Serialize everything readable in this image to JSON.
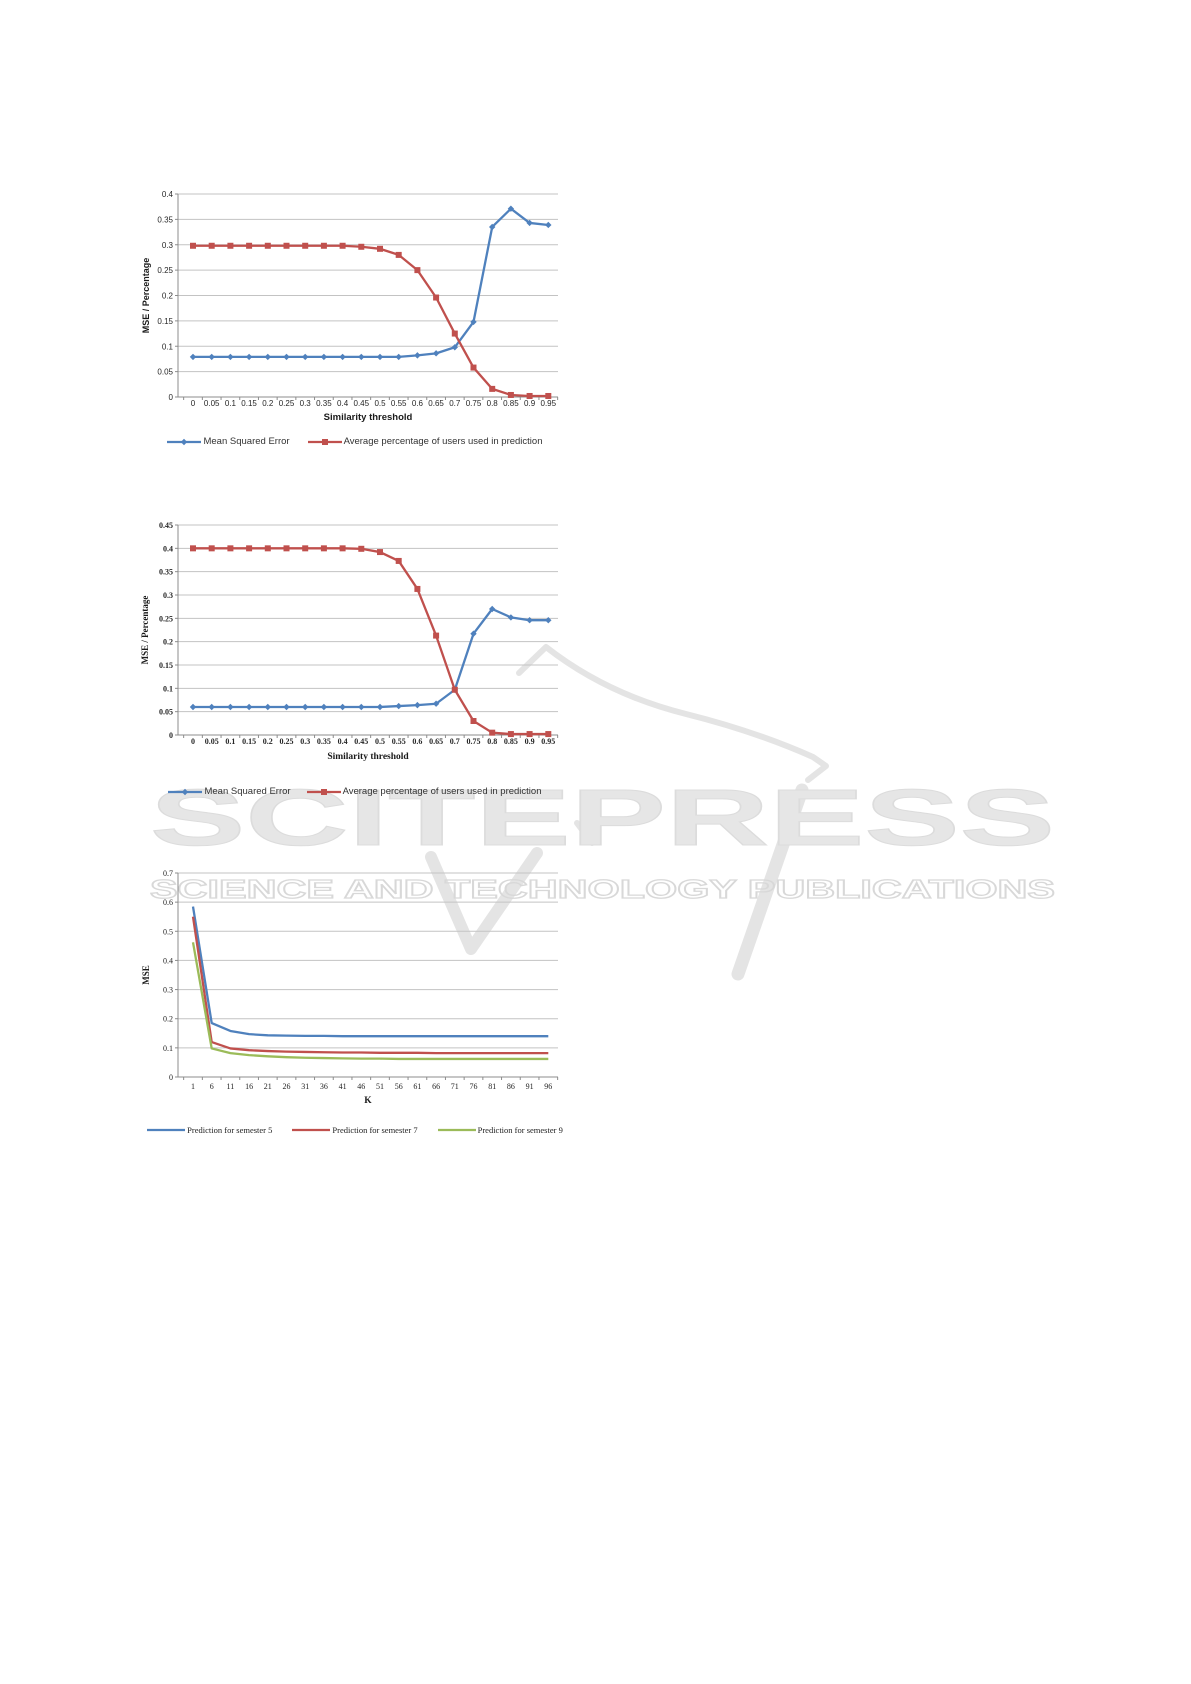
{
  "watermark": {
    "title": "SCITEPRESS",
    "subtitle": "SCIENCE AND TECHNOLOGY PUBLICATIONS",
    "fill_color": "#e6e6e6",
    "outline_color": "#dadada"
  },
  "chart_data": [
    {
      "type": "line",
      "title": "",
      "xlabel": "Similarity threshold",
      "ylabel": "MSE / Percentage",
      "x_tick_labels": [
        "0",
        "0.05",
        "0.1",
        "0.15",
        "0.2",
        "0.25",
        "0.3",
        "0.35",
        "0.4",
        "0.45",
        "0.5",
        "0.55",
        "0.6",
        "0.65",
        "0.7",
        "0.75",
        "0.8",
        "0.85",
        "0.9",
        "0.95"
      ],
      "y_ticks": [
        0,
        0.05,
        0.1,
        0.15,
        0.2,
        0.25,
        0.3,
        0.35,
        0.4
      ],
      "y_tick_labels": [
        "0",
        "0.05",
        "0.1",
        "0.15",
        "0.2",
        "0.25",
        "0.3",
        "0.35",
        "0.4"
      ],
      "ylim": [
        0,
        0.4
      ],
      "grid": true,
      "legend_position": "bottom",
      "series": [
        {
          "name": "Mean Squared Error",
          "color": "#4f81bd",
          "marker": "diamond",
          "values": [
            0.079,
            0.079,
            0.079,
            0.079,
            0.079,
            0.079,
            0.079,
            0.079,
            0.079,
            0.079,
            0.079,
            0.079,
            0.082,
            0.086,
            0.098,
            0.148,
            0.335,
            0.371,
            0.343,
            0.339
          ]
        },
        {
          "name": "Average percentage of users used in prediction",
          "color": "#c0504d",
          "marker": "square",
          "values": [
            0.298,
            0.298,
            0.298,
            0.298,
            0.298,
            0.298,
            0.298,
            0.298,
            0.298,
            0.296,
            0.292,
            0.28,
            0.25,
            0.196,
            0.125,
            0.058,
            0.016,
            0.004,
            0.002,
            0.002
          ]
        }
      ]
    },
    {
      "type": "line",
      "title": "",
      "xlabel": "Similarity threshold",
      "ylabel": "MSE / Percentage",
      "x_tick_labels": [
        "0",
        "0.05",
        "0.1",
        "0.15",
        "0.2",
        "0.25",
        "0.3",
        "0.35",
        "0.4",
        "0.45",
        "0.5",
        "0.55",
        "0.6",
        "0.65",
        "0.7",
        "0.75",
        "0.8",
        "0.85",
        "0.9",
        "0.95"
      ],
      "y_ticks": [
        0,
        0.05,
        0.1,
        0.15,
        0.2,
        0.25,
        0.3,
        0.35,
        0.4,
        0.45
      ],
      "y_tick_labels": [
        "0",
        "0.05",
        "0.1",
        "0.15",
        "0.2",
        "0.25",
        "0.3",
        "0.35",
        "0.4",
        "0.45"
      ],
      "ylim": [
        0,
        0.45
      ],
      "grid": true,
      "legend_position": "bottom",
      "series": [
        {
          "name": "Mean Squared Error",
          "color": "#4f81bd",
          "marker": "diamond",
          "values": [
            0.06,
            0.06,
            0.06,
            0.06,
            0.06,
            0.06,
            0.06,
            0.06,
            0.06,
            0.06,
            0.06,
            0.062,
            0.064,
            0.067,
            0.097,
            0.217,
            0.27,
            0.252,
            0.246,
            0.246
          ]
        },
        {
          "name": "Average percentage of users used in prediction",
          "color": "#c0504d",
          "marker": "square",
          "values": [
            0.4,
            0.4,
            0.4,
            0.4,
            0.4,
            0.4,
            0.4,
            0.4,
            0.4,
            0.399,
            0.392,
            0.373,
            0.313,
            0.213,
            0.097,
            0.03,
            0.005,
            0.002,
            0.002,
            0.002
          ]
        }
      ]
    },
    {
      "type": "line",
      "title": "",
      "xlabel": "K",
      "ylabel": "MSE",
      "x_tick_labels": [
        "1",
        "6",
        "11",
        "16",
        "21",
        "26",
        "31",
        "36",
        "41",
        "46",
        "51",
        "56",
        "61",
        "66",
        "71",
        "76",
        "81",
        "86",
        "91",
        "96"
      ],
      "y_ticks": [
        0,
        0.1,
        0.2,
        0.3,
        0.4,
        0.5,
        0.6,
        0.7
      ],
      "y_tick_labels": [
        "0",
        "0.1",
        "0.2",
        "0.3",
        "0.4",
        "0.5",
        "0.6",
        "0.7"
      ],
      "ylim": [
        0,
        0.7
      ],
      "grid": true,
      "legend_position": "bottom",
      "series": [
        {
          "name": "Prediction for semester 5",
          "color": "#4f81bd",
          "marker": "none",
          "values": [
            0.585,
            0.185,
            0.158,
            0.147,
            0.143,
            0.142,
            0.141,
            0.141,
            0.14,
            0.14,
            0.14,
            0.14,
            0.14,
            0.14,
            0.14,
            0.14,
            0.14,
            0.14,
            0.14,
            0.14
          ]
        },
        {
          "name": "Prediction for semester 7",
          "color": "#c0504d",
          "marker": "none",
          "values": [
            0.55,
            0.12,
            0.098,
            0.092,
            0.089,
            0.087,
            0.086,
            0.085,
            0.084,
            0.084,
            0.083,
            0.083,
            0.083,
            0.082,
            0.082,
            0.082,
            0.082,
            0.082,
            0.082,
            0.082
          ]
        },
        {
          "name": "Prediction for semester 9",
          "color": "#9bbb59",
          "marker": "none",
          "values": [
            0.462,
            0.098,
            0.082,
            0.075,
            0.071,
            0.068,
            0.066,
            0.065,
            0.064,
            0.063,
            0.063,
            0.062,
            0.062,
            0.062,
            0.062,
            0.062,
            0.062,
            0.062,
            0.062,
            0.062
          ]
        }
      ]
    }
  ]
}
